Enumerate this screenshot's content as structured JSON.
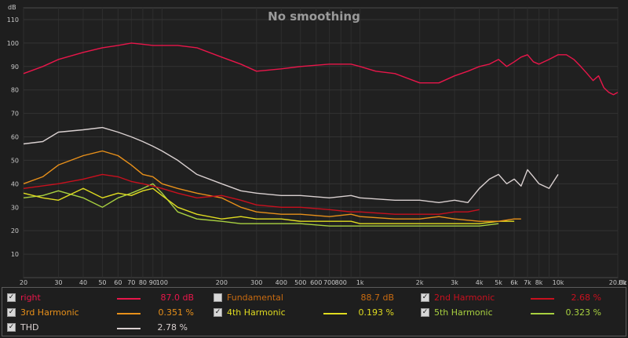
{
  "chart_data": {
    "type": "line",
    "title": "No smoothing",
    "ylabel": "dB",
    "xlabel": "Hz",
    "x_scale": "log",
    "xlim": [
      20,
      20000
    ],
    "ylim": [
      0,
      115
    ],
    "grid": true,
    "y_ticks": [
      10,
      20,
      30,
      40,
      50,
      60,
      70,
      80,
      90,
      100,
      110
    ],
    "x_ticks": [
      {
        "v": 20,
        "t": "20"
      },
      {
        "v": 30,
        "t": "30"
      },
      {
        "v": 40,
        "t": "40"
      },
      {
        "v": 50,
        "t": "50"
      },
      {
        "v": 60,
        "t": "60"
      },
      {
        "v": 70,
        "t": "70"
      },
      {
        "v": 80,
        "t": "80"
      },
      {
        "v": 90,
        "t": "90"
      },
      {
        "v": 100,
        "t": "100"
      },
      {
        "v": 200,
        "t": "200"
      },
      {
        "v": 300,
        "t": "300"
      },
      {
        "v": 400,
        "t": "400"
      },
      {
        "v": 500,
        "t": "500"
      },
      {
        "v": 600,
        "t": "600"
      },
      {
        "v": 700,
        "t": "700"
      },
      {
        "v": 800,
        "t": "800"
      },
      {
        "v": 1000,
        "t": "1k"
      },
      {
        "v": 2000,
        "t": "2k"
      },
      {
        "v": 3000,
        "t": "3k"
      },
      {
        "v": 4000,
        "t": "4k"
      },
      {
        "v": 5000,
        "t": "5k"
      },
      {
        "v": 6000,
        "t": "6k"
      },
      {
        "v": 7000,
        "t": "7k"
      },
      {
        "v": 8000,
        "t": "8k"
      },
      {
        "v": 10000,
        "t": "10k"
      },
      {
        "v": 20000,
        "t": "20.0k"
      }
    ],
    "series": [
      {
        "name": "right",
        "color": "#e8164a",
        "x": [
          20,
          25,
          30,
          40,
          50,
          60,
          70,
          80,
          90,
          100,
          120,
          150,
          200,
          250,
          300,
          400,
          500,
          700,
          900,
          1000,
          1200,
          1500,
          2000,
          2500,
          3000,
          3500,
          4000,
          4500,
          5000,
          5500,
          6000,
          6500,
          7000,
          7500,
          8000,
          9000,
          10000,
          11000,
          12000,
          13000,
          14000,
          15000,
          16000,
          17000,
          18000,
          19000,
          20000
        ],
        "y": [
          87,
          90,
          93,
          96,
          98,
          99,
          100,
          99.5,
          99,
          99,
          99,
          98,
          94,
          91,
          88,
          89,
          90,
          91,
          91,
          90,
          88,
          87,
          83,
          83,
          86,
          88,
          90,
          91,
          93,
          90,
          92,
          94,
          95,
          92,
          91,
          93,
          95,
          95,
          93,
          90,
          87,
          84,
          86,
          81,
          79,
          78,
          79
        ]
      },
      {
        "name": "THD",
        "color": "#d9d0d0",
        "x": [
          20,
          25,
          30,
          40,
          50,
          60,
          70,
          80,
          90,
          100,
          120,
          150,
          200,
          250,
          300,
          400,
          500,
          700,
          900,
          1000,
          1500,
          2000,
          2500,
          3000,
          3500,
          4000,
          4500,
          5000,
          5500,
          6000,
          6500,
          7000,
          7500,
          8000,
          9000,
          10000
        ],
        "y": [
          57,
          58,
          62,
          63,
          64,
          62,
          60,
          58,
          56,
          54,
          50,
          44,
          40,
          37,
          36,
          35,
          35,
          34,
          35,
          34,
          33,
          33,
          32,
          33,
          32,
          38,
          42,
          44,
          40,
          42,
          39,
          46,
          43,
          40,
          38,
          44
        ]
      },
      {
        "name": "2nd Harmonic",
        "color": "#c8101e",
        "x": [
          20,
          30,
          40,
          50,
          60,
          70,
          80,
          90,
          100,
          120,
          150,
          200,
          250,
          300,
          400,
          500,
          700,
          900,
          1000,
          1500,
          2000,
          2500,
          3000,
          3500,
          4000
        ],
        "y": [
          38,
          40,
          42,
          44,
          43,
          41,
          40,
          39,
          38,
          36,
          34,
          35,
          33,
          31,
          30,
          30,
          29,
          28,
          28,
          27,
          27,
          27,
          28,
          28,
          29
        ]
      },
      {
        "name": "3rd Harmonic",
        "color": "#e8901a",
        "x": [
          20,
          25,
          30,
          40,
          50,
          60,
          70,
          80,
          90,
          100,
          120,
          150,
          200,
          250,
          300,
          400,
          500,
          700,
          900,
          1000,
          1500,
          2000,
          2500,
          3000,
          4000,
          5000,
          6000,
          6500
        ],
        "y": [
          40,
          43,
          48,
          52,
          54,
          52,
          48,
          44,
          43,
          40,
          38,
          36,
          34,
          30,
          28,
          27,
          27,
          26,
          27,
          26,
          25,
          25,
          26,
          25,
          24,
          24,
          25,
          25
        ]
      },
      {
        "name": "4th Harmonic",
        "color": "#e0dc20",
        "x": [
          20,
          25,
          30,
          40,
          50,
          60,
          70,
          80,
          90,
          100,
          120,
          150,
          200,
          250,
          300,
          400,
          500,
          700,
          900,
          1000,
          1500,
          2000,
          2500,
          3000,
          4000,
          5000,
          6000
        ],
        "y": [
          36,
          34,
          33,
          38,
          34,
          36,
          35,
          37,
          38,
          35,
          30,
          27,
          25,
          26,
          25,
          25,
          24,
          24,
          24,
          23,
          23,
          23,
          23,
          23,
          23,
          24,
          24
        ]
      },
      {
        "name": "5th Harmonic",
        "color": "#a8d040",
        "x": [
          20,
          25,
          30,
          40,
          50,
          60,
          70,
          80,
          90,
          100,
          120,
          150,
          200,
          250,
          300,
          400,
          500,
          700,
          900,
          1000,
          1500,
          2000,
          2500,
          3000,
          4000,
          5000
        ],
        "y": [
          34,
          35,
          37,
          34,
          30,
          34,
          36,
          38,
          40,
          36,
          28,
          25,
          24,
          23,
          23,
          23,
          23,
          22,
          22,
          22,
          22,
          22,
          22,
          22,
          22,
          23
        ]
      }
    ]
  },
  "legend": [
    {
      "name": "right",
      "value": "87.0 dB",
      "checked": true,
      "color": "#e8164a"
    },
    {
      "name": "Fundamental",
      "value": "88.7 dB",
      "checked": false,
      "color": "#c86a10"
    },
    {
      "name": "2nd Harmonic",
      "value": "2.68 %",
      "checked": true,
      "color": "#c8101e"
    },
    {
      "name": "3rd Harmonic",
      "value": "0.351 %",
      "checked": true,
      "color": "#e8901a"
    },
    {
      "name": "4th Harmonic",
      "value": "0.193 %",
      "checked": true,
      "color": "#e0dc20"
    },
    {
      "name": "5th Harmonic",
      "value": "0.323 %",
      "checked": true,
      "color": "#a8d040"
    },
    {
      "name": "THD",
      "value": "2.78 %",
      "checked": true,
      "color": "#d9d0d0"
    }
  ],
  "check_glyph": "✓"
}
